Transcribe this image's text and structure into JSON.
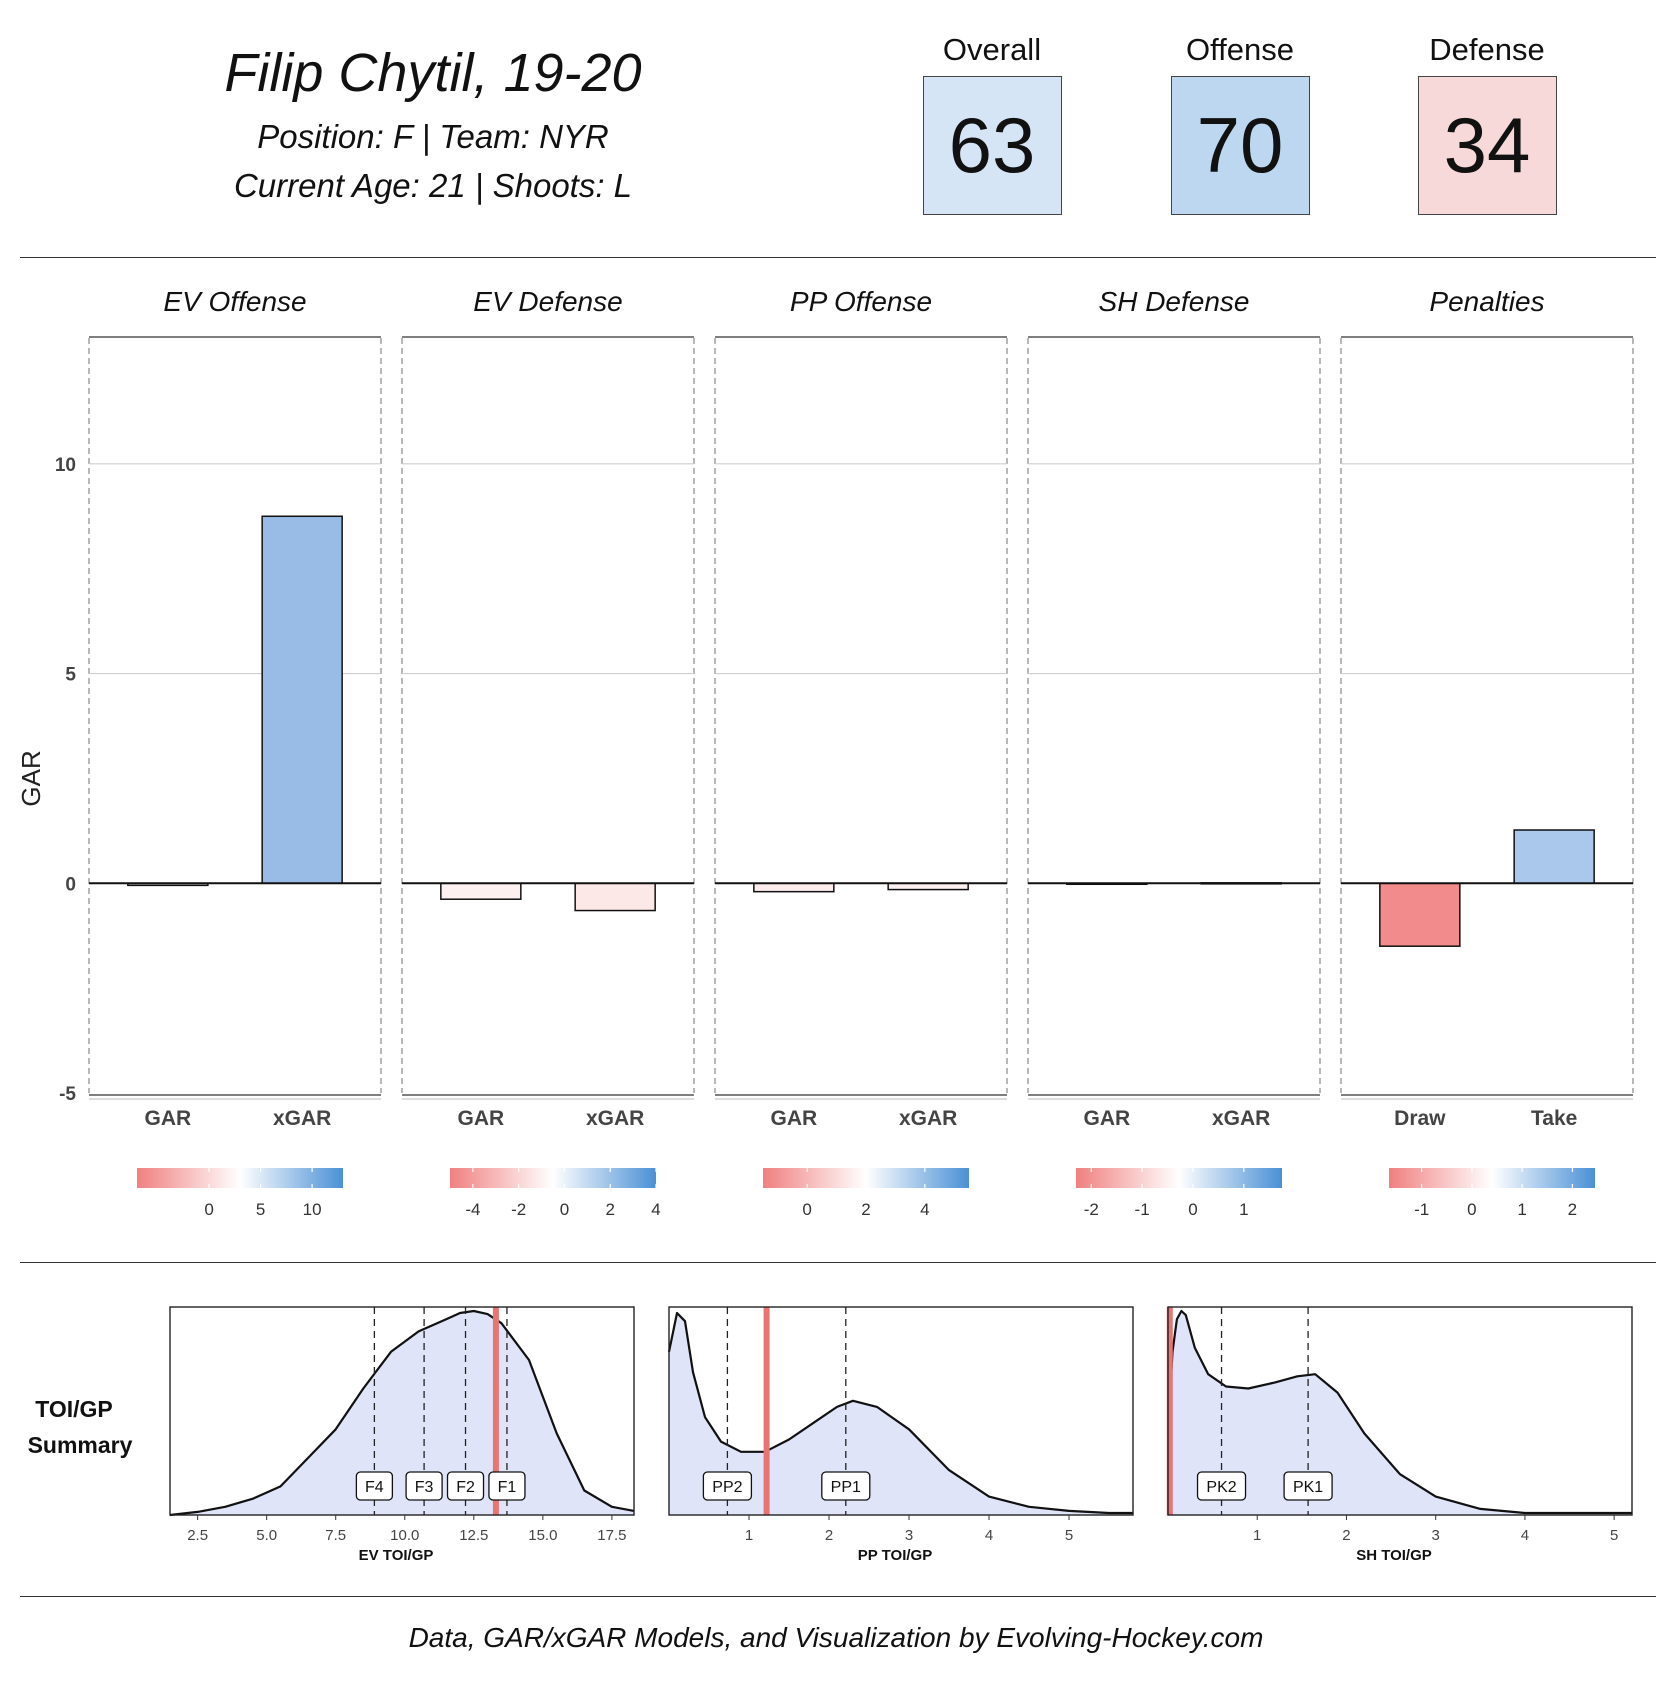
{
  "player": {
    "name": "Filip Chytil, 19-20",
    "position_team": "Position: F | Team: NYR",
    "age_shoots": "Current Age: 21 | Shoots: L"
  },
  "scores": [
    {
      "label": "Overall",
      "value": "63",
      "color": "#d6e5f5"
    },
    {
      "label": "Offense",
      "value": "70",
      "color": "#bcd7ef"
    },
    {
      "label": "Defense",
      "value": "34",
      "color": "#f8d9da"
    }
  ],
  "colors": {
    "negative": "#f08080",
    "neutral": "#ffffff",
    "positive": "#4a90d6",
    "density_fill": "#dfe4f8",
    "player_line": "#e87474"
  },
  "chart_data": [
    {
      "type": "bar",
      "ylabel": "GAR",
      "ylim": [
        -5,
        13
      ],
      "yticks": [
        -5,
        0,
        5,
        10
      ],
      "grid": true,
      "panels": [
        {
          "title": "EV Offense",
          "categories": [
            "GAR",
            "xGAR"
          ],
          "values": [
            -0.05,
            8.75
          ],
          "bar_colors": [
            "#ffffff",
            "#98bce6"
          ],
          "legend": {
            "min": -7,
            "max": 13,
            "ticks": [
              0,
              5,
              10
            ]
          }
        },
        {
          "title": "EV Defense",
          "categories": [
            "GAR",
            "xGAR"
          ],
          "values": [
            -0.38,
            -0.65
          ],
          "bar_colors": [
            "#fdf0f0",
            "#fde8e8"
          ],
          "legend": {
            "min": -5,
            "max": 4,
            "ticks": [
              -4,
              -2,
              0,
              2,
              4
            ]
          }
        },
        {
          "title": "PP Offense",
          "categories": [
            "GAR",
            "xGAR"
          ],
          "values": [
            -0.2,
            -0.15
          ],
          "bar_colors": [
            "#fcecec",
            "#fdf0f0"
          ],
          "legend": {
            "min": -1.5,
            "max": 5.5,
            "ticks": [
              0,
              2,
              4
            ]
          }
        },
        {
          "title": "SH Defense",
          "categories": [
            "GAR",
            "xGAR"
          ],
          "values": [
            -0.01,
            0.01
          ],
          "bar_colors": [
            "#ffffff",
            "#ffffff"
          ],
          "legend": {
            "min": -2.3,
            "max": 1.75,
            "ticks": [
              -2,
              -1,
              0,
              1
            ]
          }
        },
        {
          "title": "Penalties",
          "categories": [
            "Draw",
            "Take"
          ],
          "values": [
            -1.5,
            1.27
          ],
          "bar_colors": [
            "#f28b8b",
            "#a9c8ec"
          ],
          "legend": {
            "min": -1.65,
            "max": 2.45,
            "ticks": [
              -1,
              0,
              1,
              2
            ]
          }
        }
      ]
    },
    {
      "type": "area",
      "title": "TOI/GP Summary",
      "panels": [
        {
          "xlabel": "EV TOI/GP",
          "xlim": [
            1.5,
            18.3
          ],
          "xticks": [
            "2.5",
            "5.0",
            "7.5",
            "10.0",
            "12.5",
            "15.0",
            "17.5"
          ],
          "xtick_values": [
            2.5,
            5.0,
            7.5,
            10.0,
            12.5,
            15.0,
            17.5
          ],
          "density_x": [
            1.5,
            2.5,
            3.5,
            4.5,
            5.5,
            6.5,
            7.5,
            8.5,
            9.5,
            10.5,
            11.5,
            12.0,
            12.5,
            13.0,
            13.5,
            14.5,
            15.5,
            16.5,
            17.5,
            18.3
          ],
          "density_y": [
            0.0,
            0.015,
            0.04,
            0.08,
            0.14,
            0.28,
            0.42,
            0.62,
            0.8,
            0.9,
            0.96,
            0.99,
            1.0,
            0.985,
            0.94,
            0.76,
            0.4,
            0.12,
            0.04,
            0.02
          ],
          "markers": [
            {
              "label": "F4",
              "x": 8.9
            },
            {
              "label": "F3",
              "x": 10.7
            },
            {
              "label": "F2",
              "x": 12.2
            },
            {
              "label": "F1",
              "x": 13.7
            }
          ],
          "player_value": 13.3
        },
        {
          "xlabel": "PP TOI/GP",
          "xlim": [
            0.0,
            5.8
          ],
          "xticks": [
            "1",
            "2",
            "3",
            "4",
            "5"
          ],
          "xtick_values": [
            1,
            2,
            3,
            4,
            5
          ],
          "density_x": [
            0.0,
            0.1,
            0.2,
            0.3,
            0.45,
            0.65,
            0.9,
            1.2,
            1.5,
            1.8,
            2.1,
            2.3,
            2.6,
            3.0,
            3.5,
            4.0,
            4.5,
            5.0,
            5.5,
            5.8
          ],
          "density_y": [
            0.8,
            0.99,
            0.95,
            0.7,
            0.48,
            0.36,
            0.31,
            0.31,
            0.37,
            0.45,
            0.53,
            0.56,
            0.53,
            0.42,
            0.22,
            0.09,
            0.04,
            0.02,
            0.01,
            0.01
          ],
          "markers": [
            {
              "label": "PP2",
              "x": 0.73
            },
            {
              "label": "PP1",
              "x": 2.21
            }
          ],
          "player_value": 1.22
        },
        {
          "xlabel": "SH TOI/GP",
          "xlim": [
            0.0,
            5.2
          ],
          "xticks": [
            "1",
            "2",
            "3",
            "4",
            "5"
          ],
          "xtick_values": [
            1,
            2,
            3,
            4,
            5
          ],
          "density_x": [
            0.0,
            0.05,
            0.1,
            0.15,
            0.2,
            0.3,
            0.45,
            0.65,
            0.9,
            1.2,
            1.45,
            1.65,
            1.9,
            2.2,
            2.6,
            3.0,
            3.5,
            4.0,
            4.5,
            5.2
          ],
          "density_y": [
            0.4,
            0.8,
            0.96,
            1.0,
            0.98,
            0.82,
            0.69,
            0.63,
            0.62,
            0.65,
            0.68,
            0.69,
            0.6,
            0.4,
            0.2,
            0.09,
            0.03,
            0.01,
            0.01,
            0.01
          ],
          "markers": [
            {
              "label": "PK2",
              "x": 0.6
            },
            {
              "label": "PK1",
              "x": 1.57
            }
          ],
          "player_value": 0.02
        }
      ]
    }
  ],
  "footer": "Data, GAR/xGAR Models, and Visualization by Evolving-Hockey.com"
}
